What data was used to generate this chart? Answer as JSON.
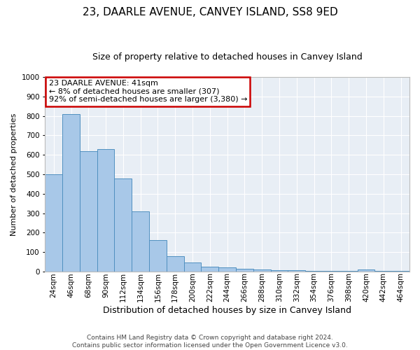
{
  "title": "23, DAARLE AVENUE, CANVEY ISLAND, SS8 9ED",
  "subtitle": "Size of property relative to detached houses in Canvey Island",
  "xlabel": "Distribution of detached houses by size in Canvey Island",
  "ylabel": "Number of detached properties",
  "categories": [
    "24sqm",
    "46sqm",
    "68sqm",
    "90sqm",
    "112sqm",
    "134sqm",
    "156sqm",
    "178sqm",
    "200sqm",
    "222sqm",
    "244sqm",
    "266sqm",
    "288sqm",
    "310sqm",
    "332sqm",
    "354sqm",
    "376sqm",
    "398sqm",
    "420sqm",
    "442sqm",
    "464sqm"
  ],
  "bar_values": [
    500,
    810,
    620,
    630,
    480,
    310,
    160,
    80,
    45,
    25,
    20,
    15,
    12,
    8,
    8,
    5,
    2,
    2,
    10,
    2,
    2
  ],
  "bar_color": "#a8c8e8",
  "bar_edge_color": "#5090c0",
  "ylim": [
    0,
    1000
  ],
  "yticks": [
    0,
    100,
    200,
    300,
    400,
    500,
    600,
    700,
    800,
    900,
    1000
  ],
  "annotation_text": "23 DAARLE AVENUE: 41sqm\n← 8% of detached houses are smaller (307)\n92% of semi-detached houses are larger (3,380) →",
  "annotation_box_color": "#ffffff",
  "annotation_box_edge": "#cc0000",
  "footer_line1": "Contains HM Land Registry data © Crown copyright and database right 2024.",
  "footer_line2": "Contains public sector information licensed under the Open Government Licence v3.0.",
  "fig_bg_color": "#ffffff",
  "plot_bg_color": "#e8eef5",
  "grid_color": "#ffffff",
  "title_fontsize": 11,
  "subtitle_fontsize": 9,
  "ylabel_fontsize": 8,
  "xlabel_fontsize": 9,
  "tick_fontsize": 7.5,
  "annotation_fontsize": 8,
  "footer_fontsize": 6.5
}
